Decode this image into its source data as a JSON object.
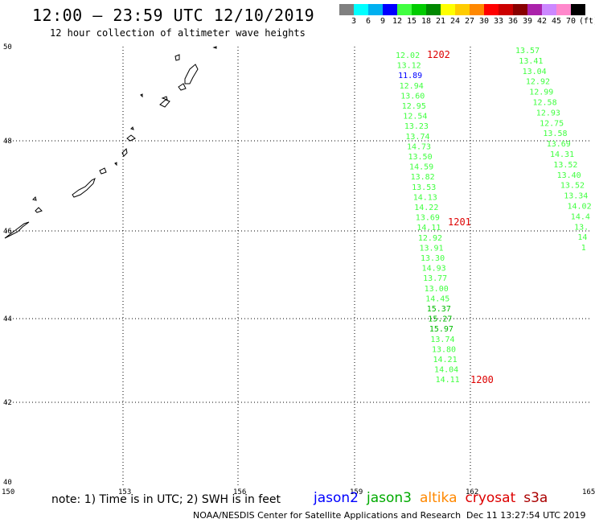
{
  "header": {
    "title": "12:00 — 23:59 UTC 12/10/2019",
    "subtitle": "12 hour collection of altimeter wave heights"
  },
  "legend": {
    "unit": "(ft)",
    "bins": [
      {
        "label": "3",
        "color": "#808080"
      },
      {
        "label": "6",
        "color": "#00ffff"
      },
      {
        "label": "9",
        "color": "#00b0f0"
      },
      {
        "label": "12",
        "color": "#0000ff"
      },
      {
        "label": "15",
        "color": "#40ff40"
      },
      {
        "label": "18",
        "color": "#00cc00"
      },
      {
        "label": "21",
        "color": "#008800"
      },
      {
        "label": "24",
        "color": "#ffff00"
      },
      {
        "label": "27",
        "color": "#ffcc00"
      },
      {
        "label": "30",
        "color": "#ff8800"
      },
      {
        "label": "33",
        "color": "#ff0000"
      },
      {
        "label": "36",
        "color": "#cc0000"
      },
      {
        "label": "39",
        "color": "#880000"
      },
      {
        "label": "42",
        "color": "#aa22aa"
      },
      {
        "label": "45",
        "color": "#cc88ff"
      },
      {
        "label": "70",
        "color": "#ff88cc"
      },
      {
        "label": "",
        "color": "#000000"
      }
    ]
  },
  "map": {
    "lon_ticks": [
      "150",
      "153",
      "156",
      "159",
      "162",
      "165"
    ],
    "lat_ticks": [
      "50",
      "48",
      "46",
      "44",
      "42",
      "40"
    ],
    "lon_range": [
      150,
      165
    ],
    "lat_range": [
      40,
      50
    ]
  },
  "tracks": [
    {
      "id": "track-a",
      "time_label": "1202",
      "points": [
        {
          "v": "12.02",
          "c": "#40ff40"
        },
        {
          "v": "13.12",
          "c": "#40ff40"
        },
        {
          "v": "11.89",
          "c": "#0000ff"
        },
        {
          "v": "12.94",
          "c": "#40ff40"
        },
        {
          "v": "13.60",
          "c": "#40ff40"
        },
        {
          "v": "12.95",
          "c": "#40ff40"
        },
        {
          "v": "12.54",
          "c": "#40ff40"
        },
        {
          "v": "13.23",
          "c": "#40ff40"
        },
        {
          "v": "13.74",
          "c": "#40ff40"
        },
        {
          "v": "14.73",
          "c": "#40ff40"
        },
        {
          "v": "13.50",
          "c": "#40ff40"
        },
        {
          "v": "14.59",
          "c": "#40ff40"
        },
        {
          "v": "13.82",
          "c": "#40ff40"
        },
        {
          "v": "13.53",
          "c": "#40ff40"
        },
        {
          "v": "14.13",
          "c": "#40ff40"
        },
        {
          "v": "14.22",
          "c": "#40ff40"
        },
        {
          "v": "13.69",
          "c": "#40ff40"
        },
        {
          "v": "14.11",
          "c": "#40ff40"
        },
        {
          "v": "12.92",
          "c": "#40ff40"
        },
        {
          "v": "13.91",
          "c": "#40ff40"
        },
        {
          "v": "13.30",
          "c": "#40ff40"
        },
        {
          "v": "14.93",
          "c": "#40ff40"
        },
        {
          "v": "13.77",
          "c": "#40ff40"
        },
        {
          "v": "13.00",
          "c": "#40ff40"
        },
        {
          "v": "14.45",
          "c": "#40ff40"
        },
        {
          "v": "15.37",
          "c": "#00bb00"
        },
        {
          "v": "15.27",
          "c": "#00bb00"
        },
        {
          "v": "15.97",
          "c": "#00bb00"
        },
        {
          "v": "13.74",
          "c": "#40ff40"
        },
        {
          "v": "13.80",
          "c": "#40ff40"
        },
        {
          "v": "14.21",
          "c": "#40ff40"
        },
        {
          "v": "14.04",
          "c": "#40ff40"
        },
        {
          "v": "14.11",
          "c": "#40ff40"
        }
      ],
      "mid_label": "1201",
      "end_label": "1200"
    },
    {
      "id": "track-b",
      "points": [
        {
          "v": "13.57",
          "c": "#40ff40"
        },
        {
          "v": "13.41",
          "c": "#40ff40"
        },
        {
          "v": "13.04",
          "c": "#40ff40"
        },
        {
          "v": "12.92",
          "c": "#40ff40"
        },
        {
          "v": "12.99",
          "c": "#40ff40"
        },
        {
          "v": "12.58",
          "c": "#40ff40"
        },
        {
          "v": "12.93",
          "c": "#40ff40"
        },
        {
          "v": "12.75",
          "c": "#40ff40"
        },
        {
          "v": "13.58",
          "c": "#40ff40"
        },
        {
          "v": "13.69",
          "c": "#40ff40"
        },
        {
          "v": "14.31",
          "c": "#40ff40"
        },
        {
          "v": "13.52",
          "c": "#40ff40"
        },
        {
          "v": "13.40",
          "c": "#40ff40"
        },
        {
          "v": "13.52",
          "c": "#40ff40"
        },
        {
          "v": "13.34",
          "c": "#40ff40"
        },
        {
          "v": "14.02",
          "c": "#40ff40"
        },
        {
          "v": "14.4",
          "c": "#40ff40"
        },
        {
          "v": "13.",
          "c": "#40ff40"
        },
        {
          "v": "14",
          "c": "#40ff40"
        },
        {
          "v": "1",
          "c": "#40ff40"
        }
      ]
    }
  ],
  "footer": {
    "note": "note: 1) Time is in UTC; 2) SWH is in feet",
    "satellites": [
      {
        "name": "jason2",
        "color": "#0000ff"
      },
      {
        "name": "jason3",
        "color": "#00aa00"
      },
      {
        "name": "altika",
        "color": "#ff8800"
      },
      {
        "name": "cryosat",
        "color": "#dd0000"
      },
      {
        "name": "s3a",
        "color": "#aa0000"
      }
    ],
    "credit": "NOAA/NESDIS Center for Satellite Applications and Research",
    "timestamp": "Dec 11 13:27:54 UTC 2019"
  }
}
